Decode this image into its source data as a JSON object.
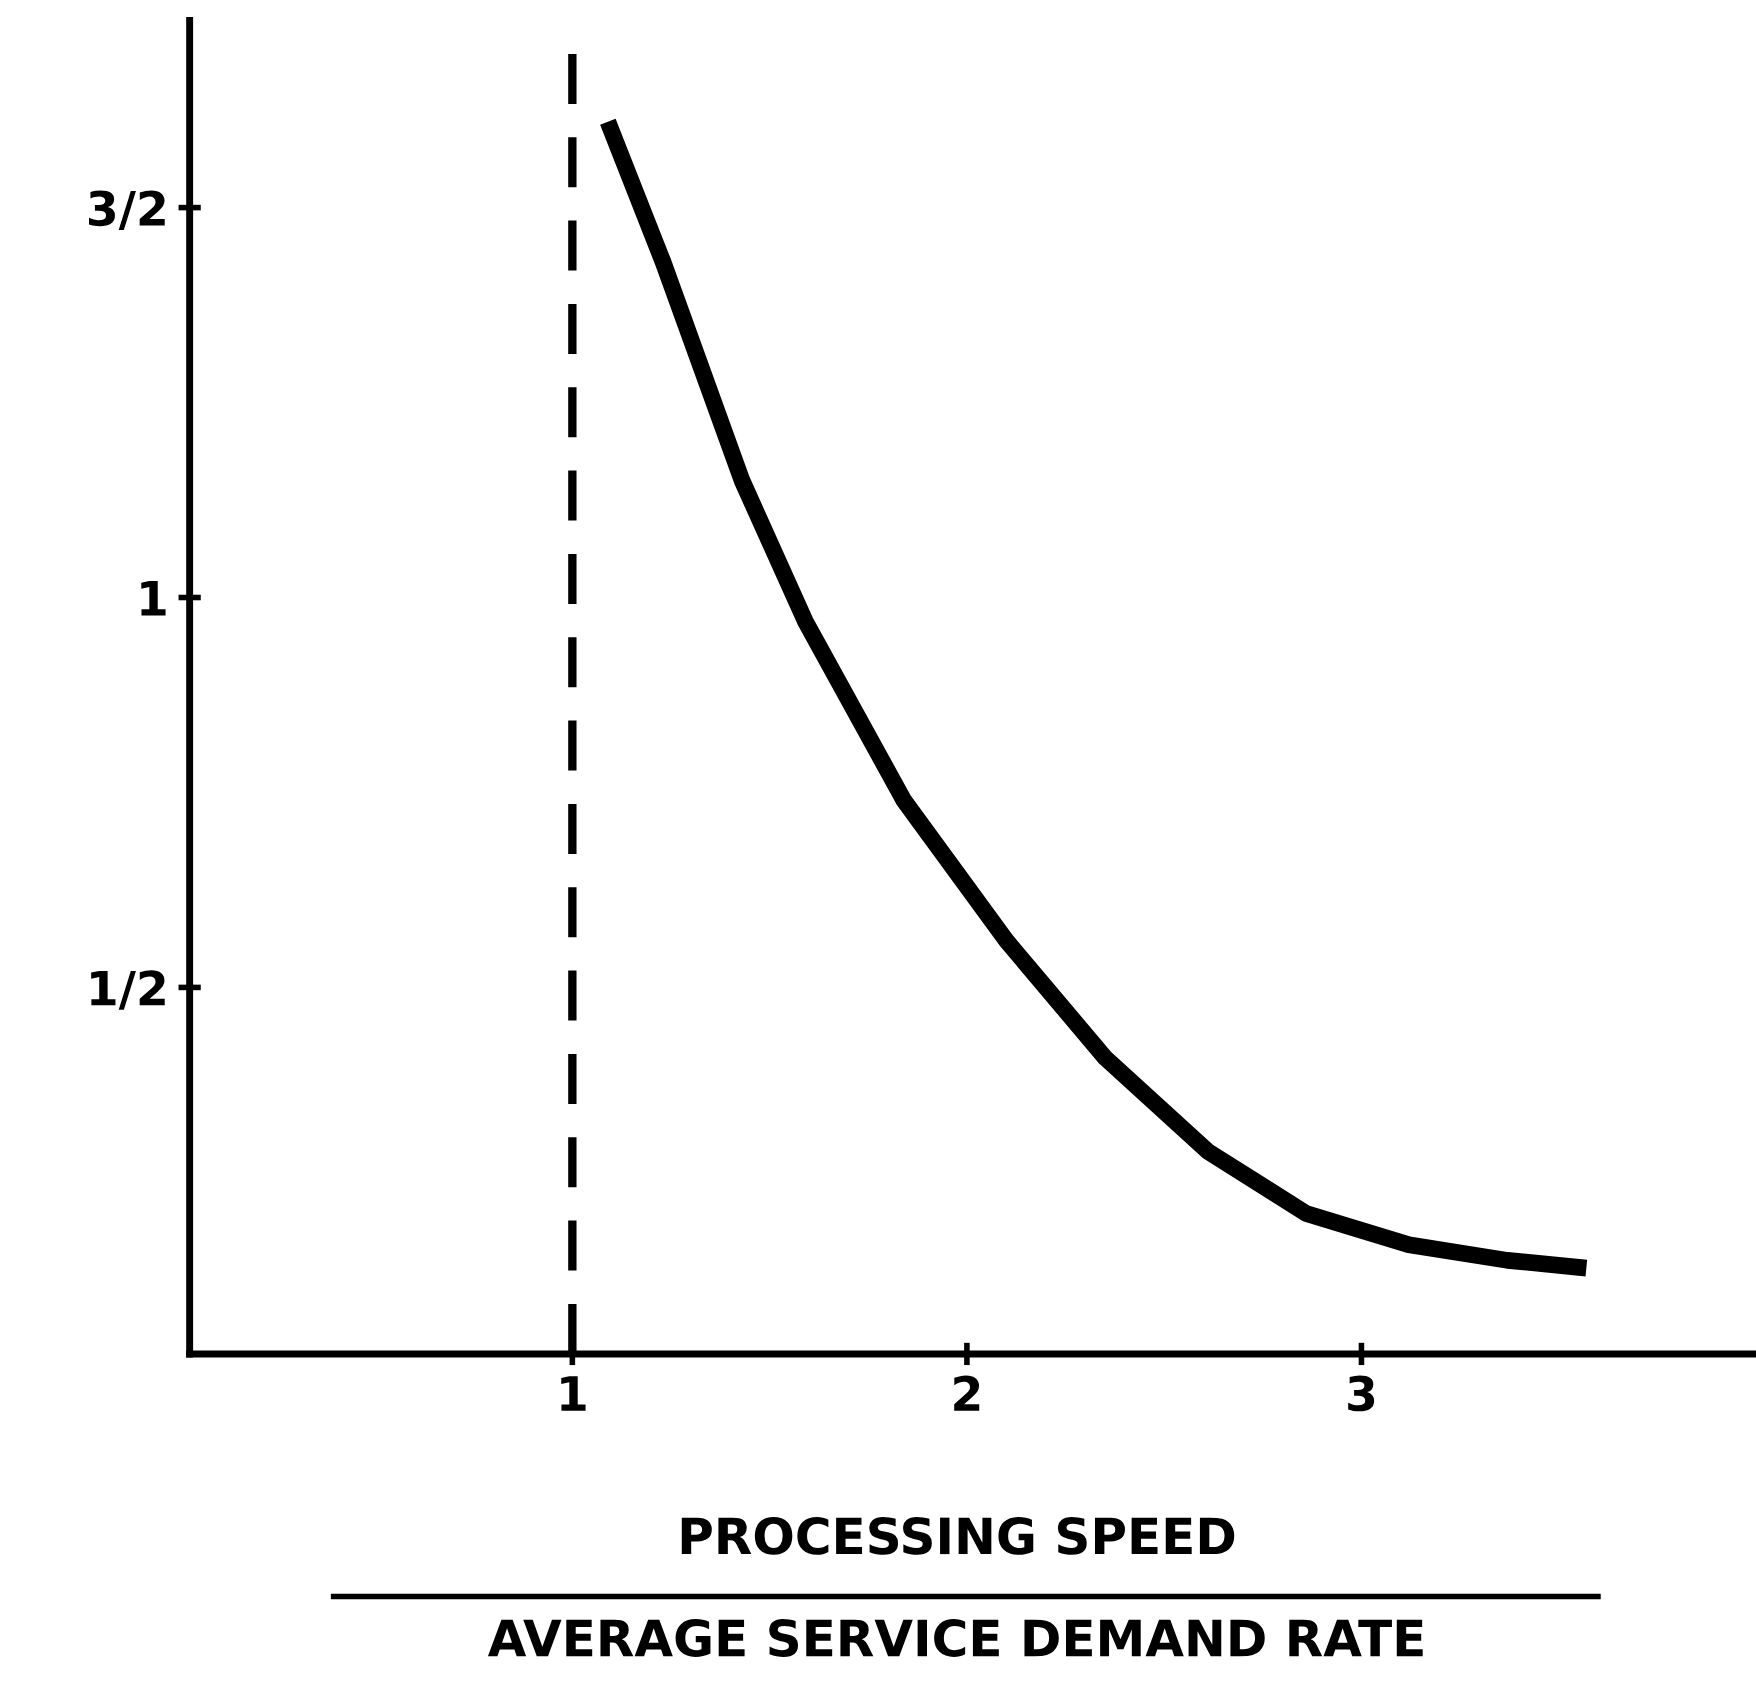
{
  "chart_data": {
    "type": "line",
    "xlabel": "PROCESSING SPEED\nAVERAGE SERVICE DEMAND RATE",
    "x": [
      1.09,
      1.23,
      1.43,
      1.59,
      1.84,
      2.1,
      2.35,
      2.61,
      2.86,
      3.12,
      3.37,
      3.57
    ],
    "series": [
      {
        "color": "#000000",
        "values": [
          1.61,
          1.43,
          1.15,
          0.97,
          0.74,
          0.56,
          0.41,
          0.29,
          0.21,
          0.17,
          0.15,
          0.14
        ]
      }
    ],
    "xlim": [
      0.03,
      4.0
    ],
    "ylim": [
      0.03,
      1.74
    ],
    "xticks": [
      {
        "value": 1,
        "label": "1"
      },
      2,
      3
    ],
    "yticks": [
      {
        "value": 0.5,
        "label": "1/2"
      },
      1,
      {
        "value": 1.5,
        "label": "3/2"
      }
    ],
    "ref_lines": [
      {
        "axis": "x",
        "value": 1,
        "color": "#000000",
        "line_style": "dashed"
      }
    ],
    "grid": false,
    "legend": false,
    "marker": "none",
    "line_style": "solid"
  }
}
